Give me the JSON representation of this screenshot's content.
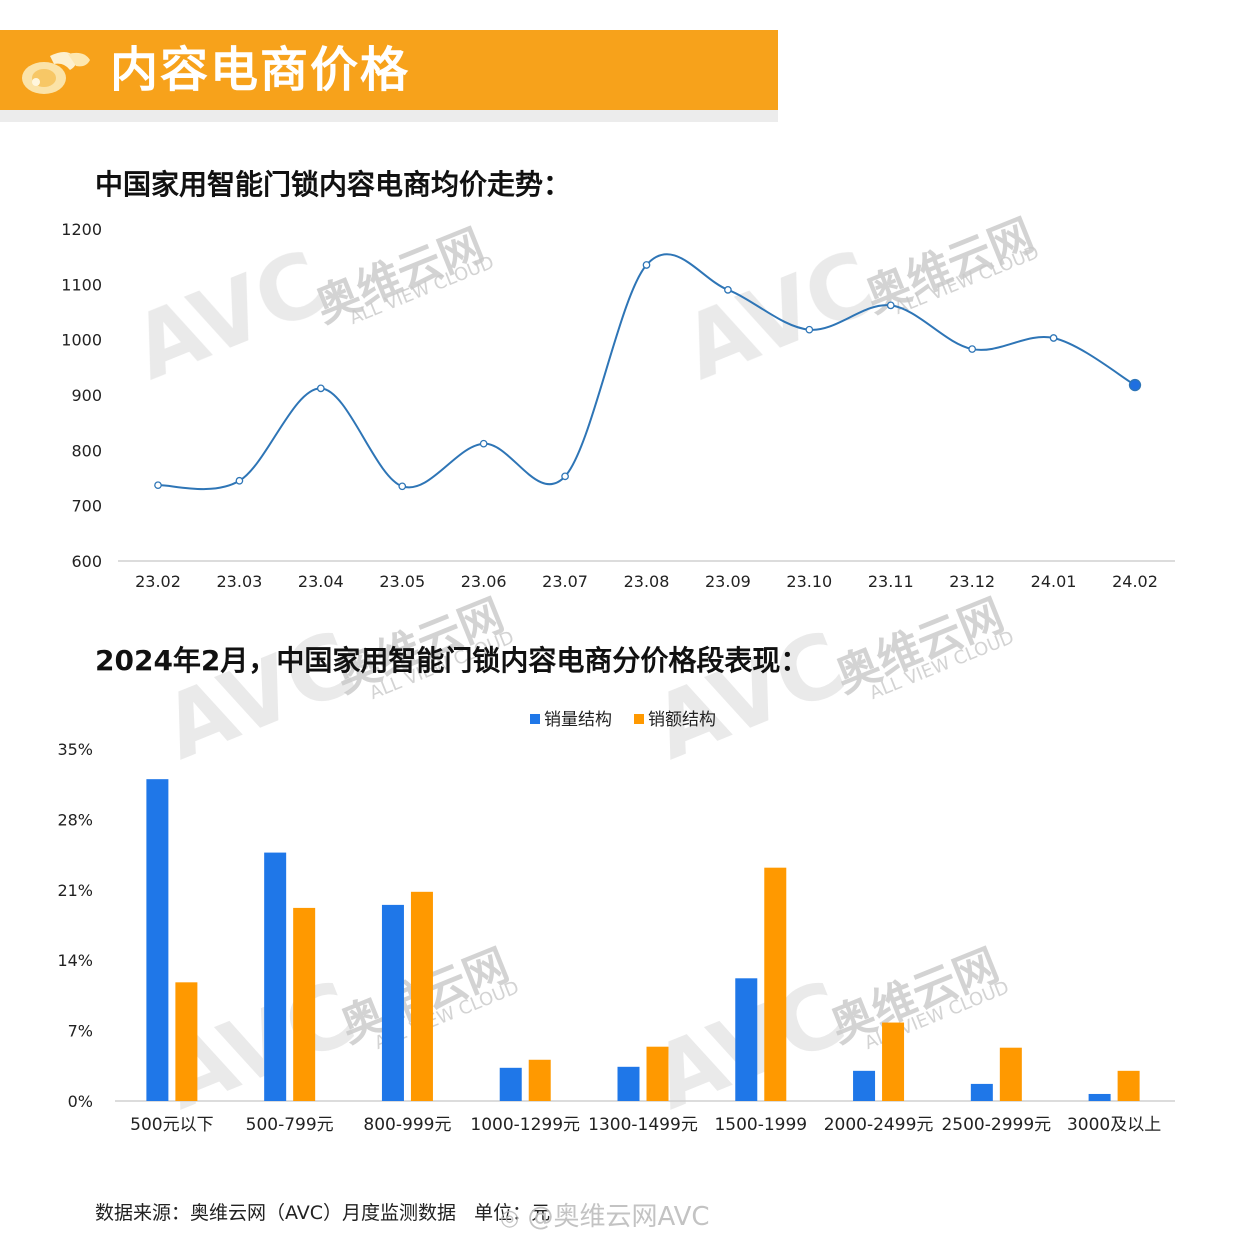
{
  "banner": {
    "title": "内容电商价格",
    "accent_color": "#f7a21b"
  },
  "line_section_title": "中国家用智能门锁内容电商均价走势：",
  "bar_section_title": "2024年2月，中国家用智能门锁内容电商分价格段表现：",
  "source_note": "数据来源：奥维云网（AVC）月度监测数据",
  "source_unit": "单位：元",
  "weibo_watermark": "@奥维云网AVC",
  "chart_data": [
    {
      "type": "line",
      "title": "中国家用智能门锁内容电商均价走势：",
      "categories": [
        "23.02",
        "23.03",
        "23.04",
        "23.05",
        "23.06",
        "23.07",
        "23.08",
        "23.09",
        "23.10",
        "23.11",
        "23.12",
        "24.01",
        "24.02"
      ],
      "series": [
        {
          "values": [
            737,
            745,
            912,
            735,
            812,
            753,
            1135,
            1090,
            1018,
            1062,
            983,
            1003,
            918
          ],
          "color": "#2e75b6"
        }
      ],
      "yticks": [
        "600",
        "700",
        "800",
        "900",
        "1000",
        "1100",
        "1200"
      ],
      "ylim": [
        600,
        1200
      ],
      "grid": false
    },
    {
      "type": "bar",
      "title": "2024年2月，中国家用智能门锁内容电商分价格段表现：",
      "categories": [
        "500元以下",
        "500-799元",
        "800-999元",
        "1000-1299元",
        "1300-1499元",
        "1500-1999",
        "2000-2499元",
        "2500-2999元",
        "3000及以上"
      ],
      "series": [
        {
          "name": "销量结构",
          "color": "#1f77e8",
          "values": [
            32.0,
            24.7,
            19.5,
            3.3,
            3.4,
            12.2,
            3.0,
            1.7,
            0.7
          ]
        },
        {
          "name": "销额结构",
          "color": "#ff9900",
          "values": [
            11.8,
            19.2,
            20.8,
            4.1,
            5.4,
            23.2,
            7.8,
            5.3,
            3.0
          ]
        }
      ],
      "yticks": [
        "0%",
        "7%",
        "14%",
        "21%",
        "28%",
        "35%"
      ],
      "ylim": [
        0,
        35
      ],
      "legend": "top-center",
      "grid": false
    }
  ],
  "watermark_text": {
    "cn": "奥维云网",
    "en": "ALL VIEW CLOUD",
    "brand": "AVC"
  }
}
